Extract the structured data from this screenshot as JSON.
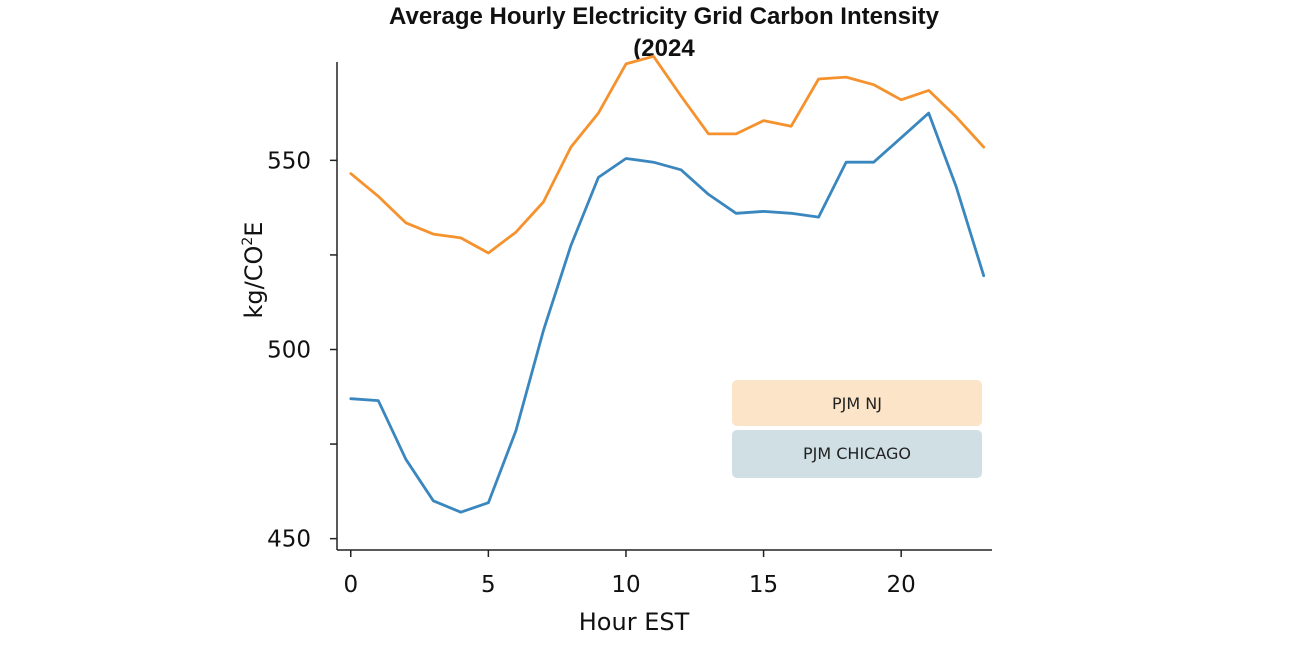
{
  "chart_data": {
    "type": "line",
    "title_line1": "Average Hourly Electricity Grid Carbon Intensity",
    "title_line2": "(2024",
    "xlabel": "Hour EST",
    "ylabel_main": "kg/CO",
    "ylabel_sup": "2",
    "ylabel_tail": "E",
    "xlim": [
      -0.5,
      23.3
    ],
    "ylim": [
      447,
      576
    ],
    "x_ticks": [
      0,
      5,
      10,
      15,
      20
    ],
    "y_ticks_labeled": [
      450,
      500,
      550
    ],
    "y_ticks_minor": [
      475,
      525
    ],
    "x": [
      0,
      1,
      2,
      3,
      4,
      5,
      6,
      7,
      8,
      9,
      10,
      11,
      12,
      13,
      14,
      15,
      16,
      17,
      18,
      19,
      20,
      21,
      22,
      23
    ],
    "series": [
      {
        "name": "PJM NJ",
        "color": "#f5922e",
        "legend_bg": "#fce4c8",
        "values": [
          546.5,
          540.5,
          533.5,
          530.5,
          529.5,
          525.5,
          531.0,
          539.0,
          553.5,
          562.5,
          575.5,
          577.5,
          567.0,
          557.0,
          557.0,
          560.5,
          559.0,
          571.5,
          572.0,
          570.0,
          566.0,
          568.5,
          561.5,
          553.5
        ]
      },
      {
        "name": "PJM CHICAGO",
        "color": "#3a87bf",
        "legend_bg": "#cfdfe3",
        "values": [
          487.0,
          486.5,
          471.0,
          460.0,
          457.0,
          459.5,
          478.5,
          505.0,
          527.5,
          545.5,
          550.5,
          549.5,
          547.5,
          541.0,
          536.0,
          536.5,
          536.0,
          535.0,
          549.5,
          549.5,
          556.0,
          562.5,
          543.0,
          519.5
        ]
      }
    ],
    "legend_position": "lower-right"
  }
}
